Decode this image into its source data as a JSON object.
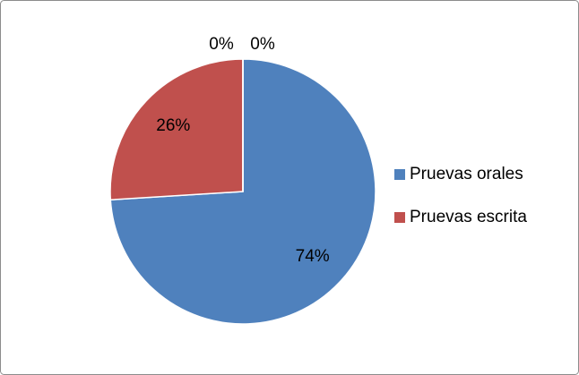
{
  "chart_data": {
    "type": "pie",
    "categories": [
      "Pruevas orales",
      "Pruevas escrita",
      null,
      null
    ],
    "values": [
      74,
      26,
      0,
      0
    ],
    "value_labels": [
      "74%",
      "26%",
      "0%",
      "0%"
    ],
    "colors": [
      "#4f81bd",
      "#c0504d"
    ],
    "legend": "right"
  }
}
